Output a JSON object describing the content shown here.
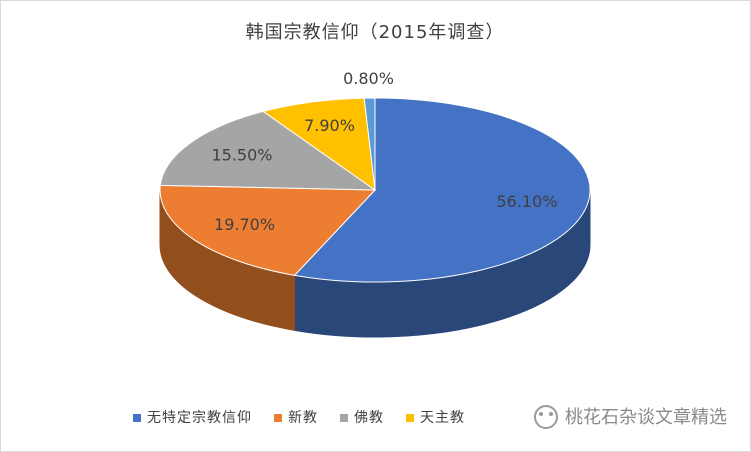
{
  "chart_data": {
    "type": "pie",
    "title": "韩国宗教信仰（2015年调查）",
    "categories": [
      "无特定宗教信仰",
      "新教",
      "佛教",
      "天主教",
      null
    ],
    "values": [
      56.1,
      19.7,
      15.5,
      7.9,
      0.8
    ],
    "value_labels": [
      "56.10%",
      "19.70%",
      "15.50%",
      "7.90%",
      "0.80%"
    ],
    "colors": [
      "#4472c4",
      "#ed7d31",
      "#a5a5a5",
      "#ffc000",
      "#5b9bd5"
    ],
    "legend": "bottom"
  },
  "watermark": "桃花石杂谈文章精选"
}
